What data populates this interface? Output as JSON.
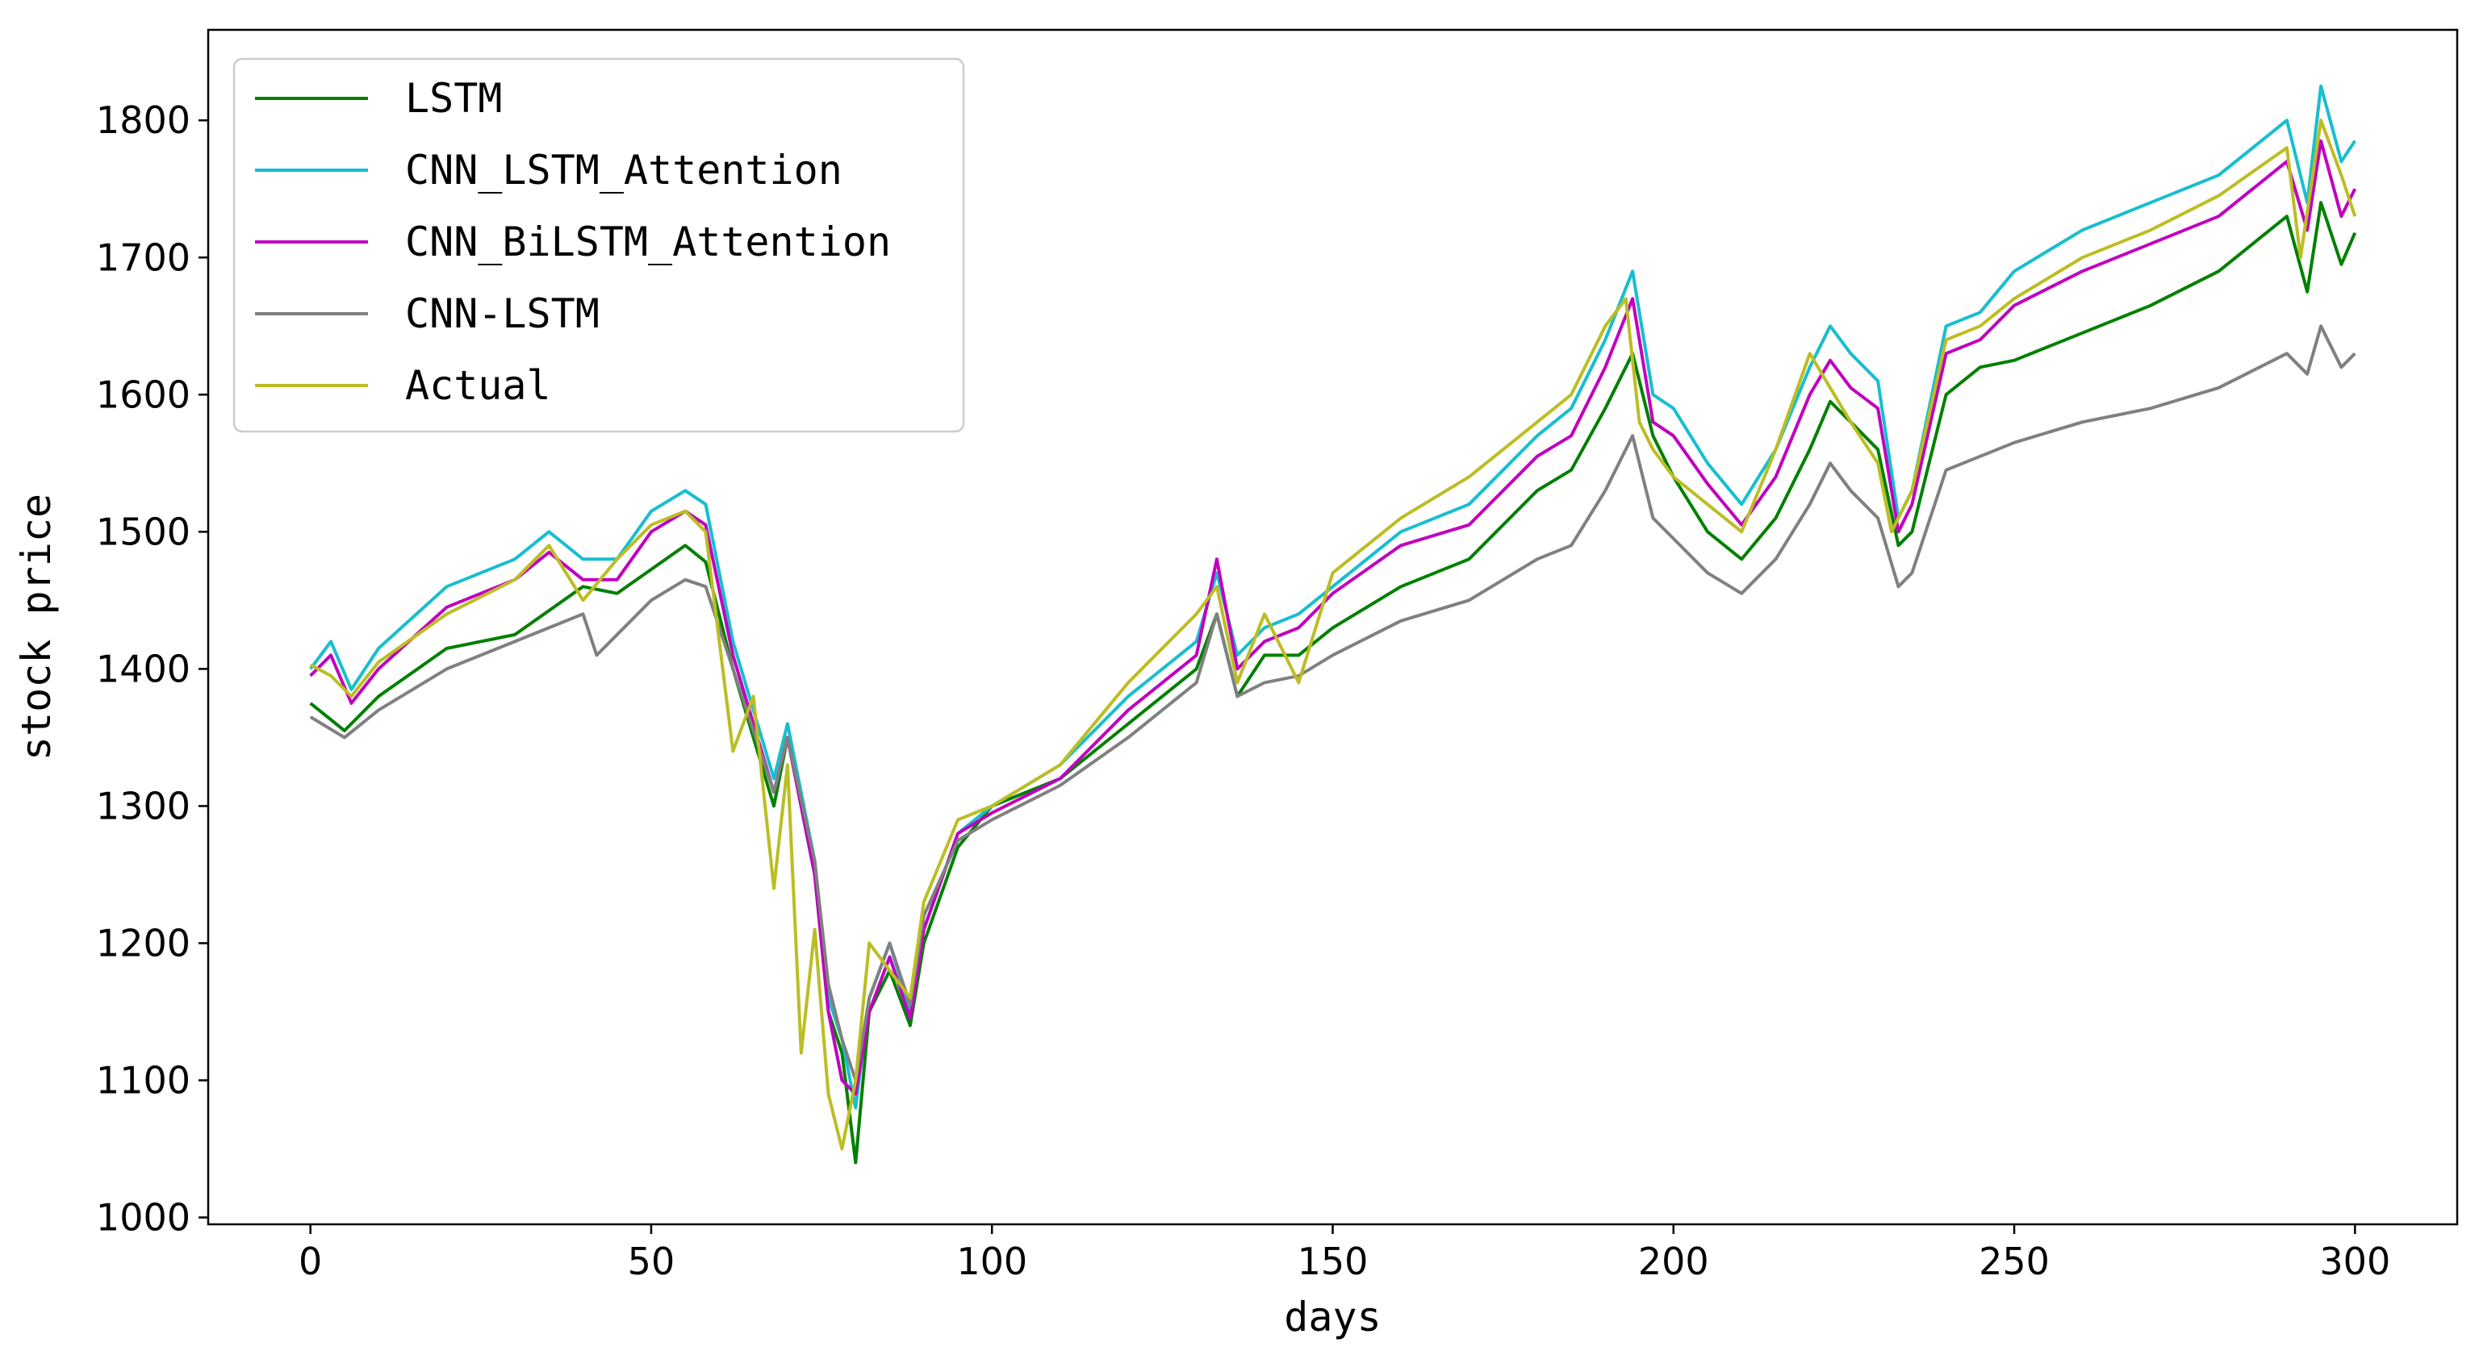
{
  "chart_data": {
    "type": "line",
    "title": "",
    "xlabel": "days",
    "ylabel": "stock price",
    "xlim": [
      -15,
      315
    ],
    "ylim": [
      995,
      1866
    ],
    "xticks": [
      0,
      50,
      100,
      150,
      200,
      250,
      300
    ],
    "yticks": [
      1000,
      1100,
      1200,
      1300,
      1400,
      1500,
      1600,
      1700,
      1800
    ],
    "legend": "upper-left",
    "grid": false,
    "series": [
      {
        "name": "LSTM",
        "color": "#008000",
        "points": [
          [
            0,
            1375
          ],
          [
            5,
            1355
          ],
          [
            10,
            1380
          ],
          [
            20,
            1415
          ],
          [
            30,
            1425
          ],
          [
            40,
            1460
          ],
          [
            45,
            1455
          ],
          [
            55,
            1490
          ],
          [
            58,
            1478
          ],
          [
            62,
            1400
          ],
          [
            65,
            1350
          ],
          [
            68,
            1300
          ],
          [
            70,
            1350
          ],
          [
            74,
            1250
          ],
          [
            76,
            1150
          ],
          [
            78,
            1120
          ],
          [
            80,
            1040
          ],
          [
            82,
            1150
          ],
          [
            85,
            1180
          ],
          [
            88,
            1140
          ],
          [
            90,
            1200
          ],
          [
            95,
            1270
          ],
          [
            100,
            1300
          ],
          [
            110,
            1320
          ],
          [
            120,
            1360
          ],
          [
            130,
            1400
          ],
          [
            133,
            1440
          ],
          [
            136,
            1380
          ],
          [
            140,
            1410
          ],
          [
            145,
            1410
          ],
          [
            150,
            1430
          ],
          [
            160,
            1460
          ],
          [
            170,
            1480
          ],
          [
            180,
            1530
          ],
          [
            185,
            1545
          ],
          [
            190,
            1590
          ],
          [
            194,
            1630
          ],
          [
            197,
            1570
          ],
          [
            200,
            1540
          ],
          [
            205,
            1500
          ],
          [
            210,
            1480
          ],
          [
            215,
            1510
          ],
          [
            220,
            1560
          ],
          [
            223,
            1595
          ],
          [
            226,
            1580
          ],
          [
            230,
            1560
          ],
          [
            233,
            1490
          ],
          [
            235,
            1500
          ],
          [
            240,
            1600
          ],
          [
            245,
            1620
          ],
          [
            250,
            1625
          ],
          [
            260,
            1645
          ],
          [
            270,
            1665
          ],
          [
            280,
            1690
          ],
          [
            290,
            1730
          ],
          [
            293,
            1675
          ],
          [
            295,
            1740
          ],
          [
            298,
            1695
          ],
          [
            300,
            1718
          ]
        ]
      },
      {
        "name": "CNN_LSTM_Attention",
        "color": "#17becf",
        "points": [
          [
            0,
            1400
          ],
          [
            3,
            1420
          ],
          [
            6,
            1385
          ],
          [
            10,
            1415
          ],
          [
            20,
            1460
          ],
          [
            30,
            1480
          ],
          [
            35,
            1500
          ],
          [
            40,
            1480
          ],
          [
            45,
            1480
          ],
          [
            50,
            1515
          ],
          [
            55,
            1530
          ],
          [
            58,
            1520
          ],
          [
            62,
            1420
          ],
          [
            65,
            1370
          ],
          [
            68,
            1320
          ],
          [
            70,
            1360
          ],
          [
            74,
            1260
          ],
          [
            76,
            1160
          ],
          [
            78,
            1130
          ],
          [
            80,
            1080
          ],
          [
            82,
            1160
          ],
          [
            85,
            1200
          ],
          [
            88,
            1150
          ],
          [
            90,
            1210
          ],
          [
            95,
            1280
          ],
          [
            100,
            1300
          ],
          [
            110,
            1330
          ],
          [
            120,
            1380
          ],
          [
            130,
            1420
          ],
          [
            133,
            1470
          ],
          [
            136,
            1410
          ],
          [
            140,
            1430
          ],
          [
            145,
            1440
          ],
          [
            150,
            1460
          ],
          [
            160,
            1500
          ],
          [
            170,
            1520
          ],
          [
            180,
            1570
          ],
          [
            185,
            1590
          ],
          [
            190,
            1640
          ],
          [
            194,
            1690
          ],
          [
            197,
            1600
          ],
          [
            200,
            1590
          ],
          [
            205,
            1550
          ],
          [
            210,
            1520
          ],
          [
            215,
            1560
          ],
          [
            220,
            1620
          ],
          [
            223,
            1650
          ],
          [
            226,
            1630
          ],
          [
            230,
            1610
          ],
          [
            233,
            1510
          ],
          [
            235,
            1530
          ],
          [
            240,
            1650
          ],
          [
            245,
            1660
          ],
          [
            250,
            1690
          ],
          [
            260,
            1720
          ],
          [
            270,
            1740
          ],
          [
            280,
            1760
          ],
          [
            290,
            1800
          ],
          [
            293,
            1740
          ],
          [
            295,
            1825
          ],
          [
            298,
            1770
          ],
          [
            300,
            1785
          ]
        ]
      },
      {
        "name": "CNN_BiLSTM_Attention",
        "color": "#c000c0",
        "points": [
          [
            0,
            1395
          ],
          [
            3,
            1410
          ],
          [
            6,
            1375
          ],
          [
            10,
            1400
          ],
          [
            20,
            1445
          ],
          [
            30,
            1465
          ],
          [
            35,
            1485
          ],
          [
            40,
            1465
          ],
          [
            45,
            1465
          ],
          [
            50,
            1500
          ],
          [
            55,
            1515
          ],
          [
            58,
            1505
          ],
          [
            62,
            1410
          ],
          [
            65,
            1360
          ],
          [
            68,
            1310
          ],
          [
            70,
            1350
          ],
          [
            74,
            1250
          ],
          [
            76,
            1150
          ],
          [
            78,
            1100
          ],
          [
            80,
            1090
          ],
          [
            82,
            1150
          ],
          [
            85,
            1190
          ],
          [
            88,
            1145
          ],
          [
            90,
            1210
          ],
          [
            95,
            1280
          ],
          [
            100,
            1295
          ],
          [
            110,
            1320
          ],
          [
            120,
            1370
          ],
          [
            130,
            1410
          ],
          [
            133,
            1480
          ],
          [
            136,
            1400
          ],
          [
            140,
            1420
          ],
          [
            145,
            1430
          ],
          [
            150,
            1455
          ],
          [
            160,
            1490
          ],
          [
            170,
            1505
          ],
          [
            180,
            1555
          ],
          [
            185,
            1570
          ],
          [
            190,
            1620
          ],
          [
            194,
            1670
          ],
          [
            197,
            1580
          ],
          [
            200,
            1570
          ],
          [
            205,
            1535
          ],
          [
            210,
            1505
          ],
          [
            215,
            1540
          ],
          [
            220,
            1600
          ],
          [
            223,
            1625
          ],
          [
            226,
            1605
          ],
          [
            230,
            1590
          ],
          [
            233,
            1500
          ],
          [
            235,
            1520
          ],
          [
            240,
            1630
          ],
          [
            245,
            1640
          ],
          [
            250,
            1665
          ],
          [
            260,
            1690
          ],
          [
            270,
            1710
          ],
          [
            280,
            1730
          ],
          [
            290,
            1770
          ],
          [
            293,
            1720
          ],
          [
            295,
            1785
          ],
          [
            298,
            1730
          ],
          [
            300,
            1750
          ]
        ]
      },
      {
        "name": "CNN-LSTM",
        "color": "#808080",
        "points": [
          [
            0,
            1365
          ],
          [
            5,
            1350
          ],
          [
            10,
            1370
          ],
          [
            20,
            1400
          ],
          [
            30,
            1420
          ],
          [
            40,
            1440
          ],
          [
            42,
            1410
          ],
          [
            50,
            1450
          ],
          [
            55,
            1465
          ],
          [
            58,
            1460
          ],
          [
            62,
            1400
          ],
          [
            65,
            1355
          ],
          [
            68,
            1310
          ],
          [
            70,
            1350
          ],
          [
            74,
            1260
          ],
          [
            76,
            1170
          ],
          [
            78,
            1130
          ],
          [
            80,
            1100
          ],
          [
            82,
            1160
          ],
          [
            85,
            1200
          ],
          [
            88,
            1155
          ],
          [
            90,
            1220
          ],
          [
            95,
            1275
          ],
          [
            100,
            1290
          ],
          [
            110,
            1315
          ],
          [
            120,
            1350
          ],
          [
            130,
            1390
          ],
          [
            133,
            1440
          ],
          [
            136,
            1380
          ],
          [
            140,
            1390
          ],
          [
            145,
            1395
          ],
          [
            150,
            1410
          ],
          [
            160,
            1435
          ],
          [
            170,
            1450
          ],
          [
            180,
            1480
          ],
          [
            185,
            1490
          ],
          [
            190,
            1530
          ],
          [
            194,
            1570
          ],
          [
            197,
            1510
          ],
          [
            200,
            1495
          ],
          [
            205,
            1470
          ],
          [
            210,
            1455
          ],
          [
            215,
            1480
          ],
          [
            220,
            1520
          ],
          [
            223,
            1550
          ],
          [
            226,
            1530
          ],
          [
            230,
            1510
          ],
          [
            233,
            1460
          ],
          [
            235,
            1470
          ],
          [
            240,
            1545
          ],
          [
            245,
            1555
          ],
          [
            250,
            1565
          ],
          [
            260,
            1580
          ],
          [
            270,
            1590
          ],
          [
            280,
            1605
          ],
          [
            290,
            1630
          ],
          [
            293,
            1615
          ],
          [
            295,
            1650
          ],
          [
            298,
            1620
          ],
          [
            300,
            1630
          ]
        ]
      },
      {
        "name": "Actual",
        "color": "#bcbd22",
        "points": [
          [
            0,
            1403
          ],
          [
            3,
            1395
          ],
          [
            6,
            1380
          ],
          [
            10,
            1405
          ],
          [
            20,
            1440
          ],
          [
            30,
            1465
          ],
          [
            35,
            1490
          ],
          [
            40,
            1450
          ],
          [
            45,
            1480
          ],
          [
            50,
            1505
          ],
          [
            55,
            1515
          ],
          [
            58,
            1500
          ],
          [
            60,
            1420
          ],
          [
            62,
            1340
          ],
          [
            65,
            1380
          ],
          [
            68,
            1240
          ],
          [
            70,
            1330
          ],
          [
            72,
            1120
          ],
          [
            74,
            1210
          ],
          [
            76,
            1090
          ],
          [
            78,
            1050
          ],
          [
            80,
            1100
          ],
          [
            82,
            1200
          ],
          [
            85,
            1180
          ],
          [
            88,
            1160
          ],
          [
            90,
            1230
          ],
          [
            95,
            1290
          ],
          [
            100,
            1300
          ],
          [
            110,
            1330
          ],
          [
            120,
            1390
          ],
          [
            130,
            1440
          ],
          [
            133,
            1460
          ],
          [
            136,
            1390
          ],
          [
            140,
            1440
          ],
          [
            145,
            1390
          ],
          [
            150,
            1470
          ],
          [
            160,
            1510
          ],
          [
            170,
            1540
          ],
          [
            180,
            1580
          ],
          [
            185,
            1600
          ],
          [
            190,
            1650
          ],
          [
            193,
            1670
          ],
          [
            195,
            1580
          ],
          [
            197,
            1560
          ],
          [
            200,
            1540
          ],
          [
            205,
            1520
          ],
          [
            210,
            1500
          ],
          [
            215,
            1560
          ],
          [
            220,
            1630
          ],
          [
            223,
            1605
          ],
          [
            226,
            1580
          ],
          [
            230,
            1550
          ],
          [
            232,
            1500
          ],
          [
            235,
            1530
          ],
          [
            240,
            1640
          ],
          [
            245,
            1650
          ],
          [
            250,
            1670
          ],
          [
            260,
            1700
          ],
          [
            270,
            1720
          ],
          [
            280,
            1745
          ],
          [
            290,
            1780
          ],
          [
            292,
            1700
          ],
          [
            295,
            1800
          ],
          [
            298,
            1760
          ],
          [
            300,
            1730
          ]
        ]
      }
    ]
  }
}
